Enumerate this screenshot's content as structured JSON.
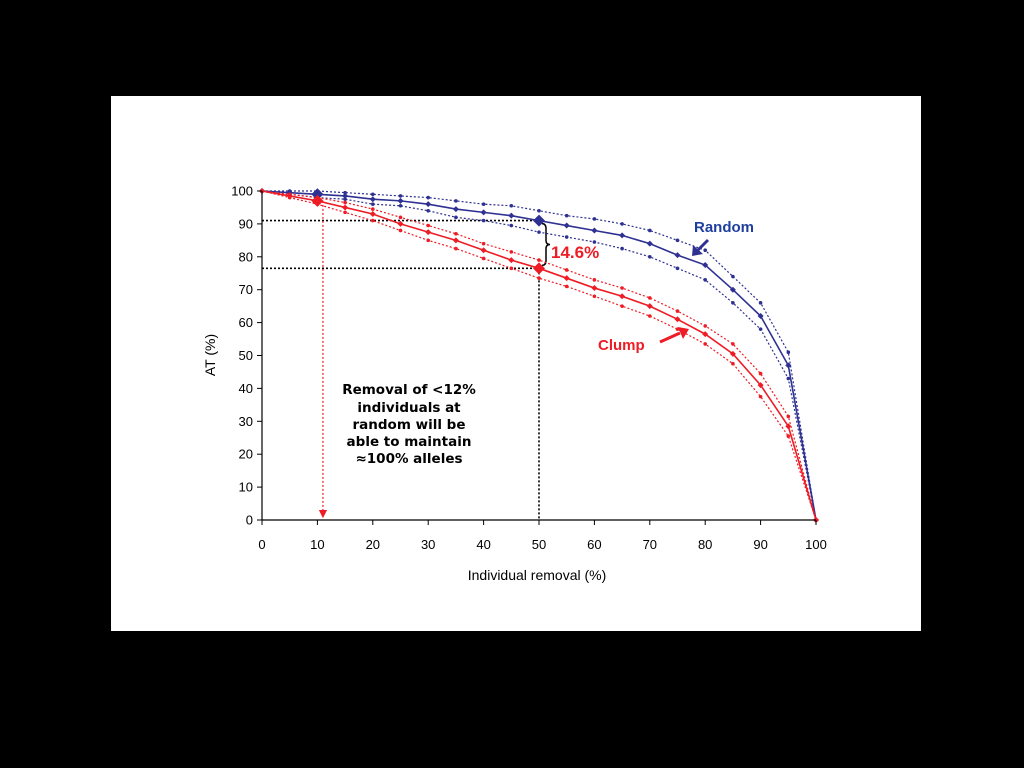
{
  "chart_data": {
    "type": "line",
    "xlabel": "Individual removal (%)",
    "ylabel": "AT (%)",
    "xlim": [
      0,
      100
    ],
    "ylim": [
      0,
      100
    ],
    "xticks": [
      0,
      10,
      20,
      30,
      40,
      50,
      60,
      70,
      80,
      90,
      100
    ],
    "yticks": [
      0,
      10,
      20,
      30,
      40,
      50,
      60,
      70,
      80,
      90,
      100
    ],
    "grid": false,
    "x": [
      0,
      5,
      10,
      15,
      20,
      25,
      30,
      35,
      40,
      45,
      50,
      55,
      60,
      65,
      70,
      75,
      80,
      85,
      90,
      95,
      100
    ],
    "series": [
      {
        "name": "Random",
        "color": "#2e3192",
        "values": [
          100,
          99.5,
          99,
          98.5,
          97.5,
          97,
          96,
          94.5,
          93.5,
          92.5,
          91,
          89.5,
          88,
          86.5,
          84,
          80.5,
          77.5,
          70,
          62,
          47,
          0
        ],
        "upper": [
          100,
          100,
          100,
          99.5,
          99,
          98.5,
          98,
          97,
          96,
          95.5,
          94,
          92.5,
          91.5,
          90,
          88,
          85,
          82,
          74,
          66,
          51,
          0
        ],
        "lower": [
          100,
          99,
          98,
          97.5,
          96,
          95.5,
          94,
          92,
          91,
          89.5,
          87.5,
          86,
          84.5,
          82.5,
          80,
          76.5,
          73,
          66,
          58,
          43,
          0
        ]
      },
      {
        "name": "Clump",
        "color": "#ee1c25",
        "values": [
          100,
          98.5,
          97,
          95,
          93,
          90,
          87.5,
          85,
          82,
          79,
          76.5,
          73.5,
          70.5,
          68,
          65,
          61,
          56.5,
          50.5,
          41,
          28.5,
          0
        ],
        "upper": [
          100,
          99,
          98,
          96.5,
          94.5,
          92,
          89.5,
          87,
          84,
          81.5,
          79,
          76,
          73,
          70.5,
          67.5,
          63.5,
          59,
          53.5,
          44.5,
          31.5,
          0
        ],
        "lower": [
          100,
          98,
          96,
          93.5,
          91,
          88,
          85,
          82.5,
          79.5,
          76.5,
          73.5,
          71,
          68,
          65,
          62,
          58,
          53.5,
          47.5,
          37.5,
          25.5,
          0
        ]
      }
    ],
    "highlight_points": [
      {
        "series": "Random",
        "x": 10,
        "y": 99
      },
      {
        "series": "Clump",
        "x": 10,
        "y": 97
      },
      {
        "series": "Random",
        "x": 50,
        "y": 91
      },
      {
        "series": "Clump",
        "x": 50,
        "y": 76.5
      }
    ],
    "reference_lines": {
      "random_at_50": 91,
      "clump_at_50": 76.5,
      "x_at_50": 50,
      "arrow_x": 11
    },
    "annotations": {
      "gap_label": "14.6%",
      "random_label": "Random",
      "clump_label": "Clump",
      "note_lines": [
        "Removal of <12%",
        "individuals at",
        "random will be",
        "able to maintain",
        "≈100% alleles"
      ]
    }
  },
  "colors": {
    "random": "#2e3192",
    "clump": "#ee1c25",
    "random_label": "#1f3fa0",
    "background": "#000000",
    "panel": "#ffffff"
  }
}
